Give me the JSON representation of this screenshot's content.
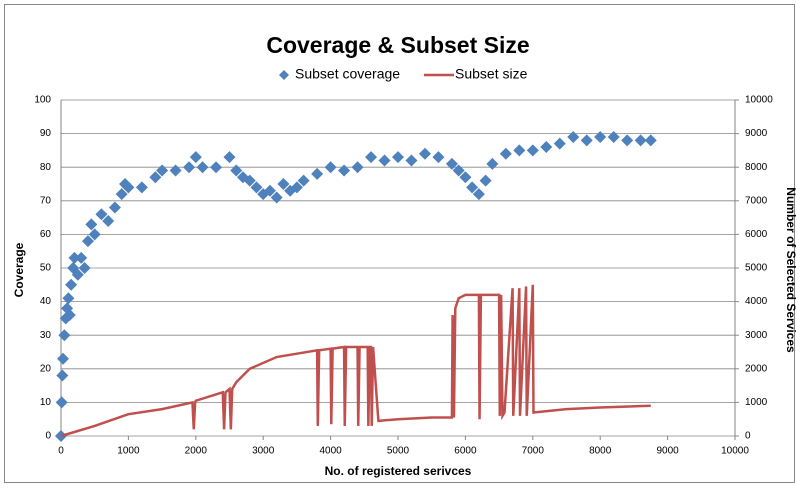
{
  "chart_data": {
    "type": "scatter",
    "title": "Coverage & Subset Size",
    "x_label": "No. of registered serivces",
    "y_label": "Coverage",
    "y2_label": "Number of Selected Services",
    "xlim": [
      0,
      10000
    ],
    "xticks": [
      0,
      1000,
      2000,
      3000,
      4000,
      5000,
      6000,
      7000,
      8000,
      9000,
      10000
    ],
    "ylim": [
      0,
      100
    ],
    "yticks": [
      0,
      10,
      20,
      30,
      40,
      50,
      60,
      70,
      80,
      90,
      100
    ],
    "y2lim": [
      0,
      10000
    ],
    "y2ticks": [
      0,
      1000,
      2000,
      3000,
      4000,
      5000,
      6000,
      7000,
      8000,
      9000,
      10000
    ],
    "grid": true,
    "legend": "top",
    "series": [
      {
        "name": "Subset coverage",
        "color": "#4f81bd",
        "mode": "markers",
        "x": [
          0,
          10,
          20,
          30,
          50,
          70,
          90,
          110,
          130,
          150,
          180,
          200,
          250,
          300,
          350,
          400,
          450,
          500,
          600,
          700,
          800,
          900,
          950,
          1000,
          1200,
          1400,
          1500,
          1700,
          1900,
          2000,
          2100,
          2300,
          2500,
          2600,
          2700,
          2800,
          2900,
          3000,
          3100,
          3200,
          3300,
          3400,
          3500,
          3600,
          3800,
          4000,
          4200,
          4400,
          4600,
          4800,
          5000,
          5200,
          5400,
          5600,
          5800,
          5900,
          6000,
          6100,
          6200,
          6300,
          6400,
          6600,
          6800,
          7000,
          7200,
          7400,
          7600,
          7800,
          8000,
          8200,
          8400,
          8600,
          8750
        ],
        "values": [
          0,
          10,
          18,
          23,
          30,
          35,
          38,
          41,
          36,
          45,
          50,
          53,
          48,
          53,
          50,
          58,
          63,
          60,
          66,
          64,
          68,
          72,
          75,
          74,
          74,
          77,
          79,
          79,
          80,
          83,
          80,
          80,
          83,
          79,
          77,
          76,
          74,
          72,
          73,
          71,
          75,
          73,
          74,
          76,
          78,
          80,
          79,
          80,
          83,
          82,
          83,
          82,
          84,
          83,
          81,
          79,
          77,
          74,
          72,
          76,
          81,
          84,
          85,
          85,
          86,
          87,
          89,
          88,
          89,
          89,
          88,
          88,
          88
        ]
      },
      {
        "name": "Subset size",
        "color": "#c0504d",
        "mode": "lines",
        "axis": "y2",
        "x": [
          0,
          500,
          1000,
          1500,
          1950,
          1970,
          1990,
          2000,
          2400,
          2420,
          2440,
          2500,
          2520,
          2540,
          2600,
          2800,
          3200,
          3800,
          3810,
          3830,
          4000,
          4010,
          4030,
          4200,
          4210,
          4230,
          4400,
          4410,
          4430,
          4550,
          4560,
          4580,
          4600,
          4610,
          4630,
          4700,
          4710,
          5000,
          5500,
          5800,
          5810,
          5830,
          5850,
          5900,
          6000,
          6200,
          6210,
          6230,
          6400,
          6500,
          6510,
          6530,
          6550,
          6580,
          6700,
          6710,
          6800,
          6810,
          6900,
          6910,
          7000,
          7010,
          7500,
          8000,
          8750
        ],
        "values": [
          0,
          300,
          650,
          800,
          1000,
          200,
          1000,
          1050,
          1300,
          200,
          1300,
          1400,
          200,
          1400,
          1600,
          2000,
          2350,
          2550,
          300,
          2550,
          2600,
          350,
          2600,
          2650,
          300,
          2650,
          2650,
          300,
          2650,
          2650,
          300,
          2650,
          2650,
          300,
          2650,
          700,
          450,
          500,
          550,
          550,
          3600,
          550,
          3800,
          4100,
          4200,
          4200,
          500,
          4200,
          4200,
          4200,
          600,
          4200,
          600,
          700,
          4400,
          600,
          4400,
          600,
          4450,
          600,
          4500,
          700,
          800,
          850,
          900
        ]
      }
    ]
  }
}
